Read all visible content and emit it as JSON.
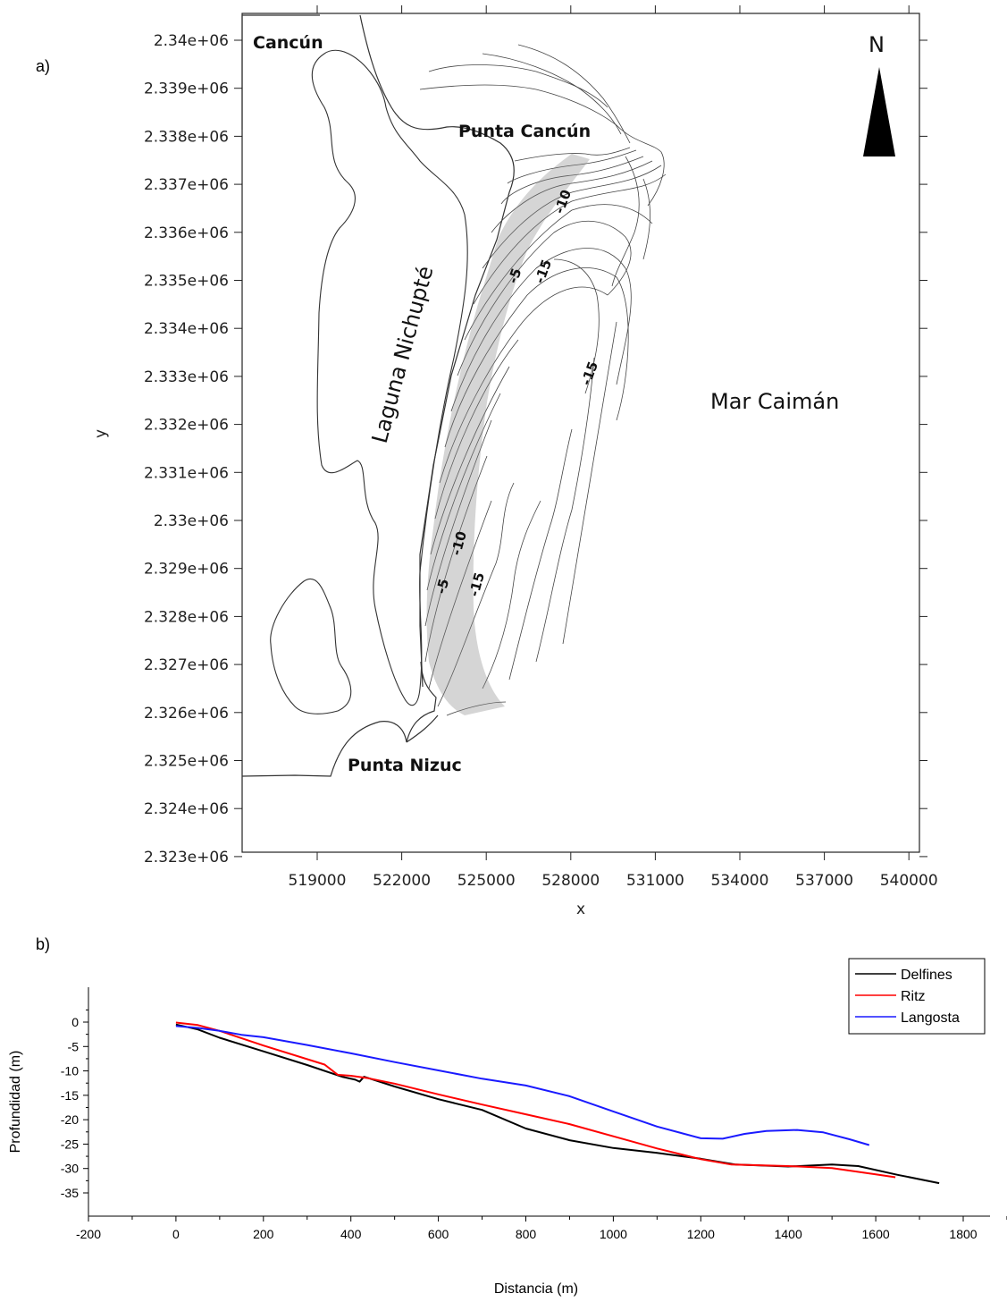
{
  "panels": {
    "a": {
      "label": "a)",
      "xlabel": "x",
      "ylabel": "y",
      "xticks": [
        "519000",
        "522000",
        "525000",
        "528000",
        "531000",
        "534000",
        "537000",
        "540000"
      ],
      "yticks": [
        "2.34e+06",
        "2.339e+06",
        "2.338e+06",
        "2.337e+06",
        "2.336e+06",
        "2.335e+06",
        "2.334e+06",
        "2.333e+06",
        "2.332e+06",
        "2.331e+06",
        "2.33e+06",
        "2.329e+06",
        "2.328e+06",
        "2.327e+06",
        "2.326e+06",
        "2.325e+06",
        "2.324e+06",
        "2.323e+06"
      ],
      "places": {
        "cancun": "Cancún",
        "punta_cancun": "Punta Cancún",
        "laguna": "Laguna Nichupté",
        "mar": "Mar Caimán",
        "punta_nizuc": "Punta Nizuc",
        "north": "N"
      },
      "contour_labels": [
        "-10",
        "-5",
        "-15",
        "-15",
        "-10",
        "-5",
        "-15"
      ]
    },
    "b": {
      "label": "b)"
    }
  },
  "chart_data": [
    {
      "type": "map",
      "title": "",
      "xlabel": "x",
      "ylabel": "y",
      "xlim": [
        516500,
        541000
      ],
      "ylim": [
        2323000,
        2340300
      ],
      "note_values": [
        "-5",
        "-10",
        "-15"
      ]
    },
    {
      "type": "line",
      "title": "",
      "xlabel": "Distancia (m)",
      "ylabel": "Profundidad (m)",
      "xlim": [
        -200,
        1900
      ],
      "ylim": [
        -37,
        3
      ],
      "xticks": [
        "-200",
        "0",
        "200",
        "400",
        "600",
        "800",
        "1000",
        "1200",
        "1400",
        "1600",
        "1800"
      ],
      "yticks": [
        "0",
        "-5",
        "-10",
        "-15",
        "-20",
        "-25",
        "-30",
        "-35"
      ],
      "legend_position": "top-right",
      "series": [
        {
          "name": "Delfines",
          "color": "#000000",
          "x": [
            0,
            50,
            100,
            200,
            300,
            380,
            410,
            420,
            430,
            500,
            600,
            700,
            800,
            900,
            1000,
            1100,
            1200,
            1280,
            1400,
            1500,
            1560,
            1650,
            1745
          ],
          "y": [
            -0.5,
            -1.5,
            -3.2,
            -6.0,
            -8.8,
            -11.2,
            -11.8,
            -12.2,
            -11.2,
            -13.2,
            -15.8,
            -18.0,
            -21.8,
            -24.2,
            -25.8,
            -26.8,
            -28.0,
            -29.2,
            -29.6,
            -29.2,
            -29.5,
            -31.3,
            -33.0
          ]
        },
        {
          "name": "Ritz",
          "color": "#ff0000",
          "x": [
            0,
            50,
            100,
            200,
            340,
            370,
            400,
            440,
            500,
            600,
            700,
            800,
            900,
            1000,
            1100,
            1200,
            1270,
            1400,
            1500,
            1600,
            1645
          ],
          "y": [
            -0.1,
            -0.6,
            -1.8,
            -4.8,
            -8.7,
            -10.8,
            -11.0,
            -11.5,
            -12.6,
            -14.8,
            -16.9,
            -18.9,
            -20.9,
            -23.4,
            -25.9,
            -28.1,
            -29.2,
            -29.5,
            -29.9,
            -31.2,
            -31.8
          ]
        },
        {
          "name": "Langosta",
          "color": "#1a1aff",
          "x": [
            0,
            50,
            100,
            150,
            200,
            220,
            300,
            400,
            500,
            600,
            700,
            800,
            900,
            1000,
            1100,
            1200,
            1250,
            1300,
            1350,
            1420,
            1480,
            1540,
            1585
          ],
          "y": [
            -0.8,
            -1.2,
            -1.8,
            -2.6,
            -3.1,
            -3.4,
            -4.7,
            -6.4,
            -8.2,
            -9.9,
            -11.6,
            -13.0,
            -15.2,
            -18.3,
            -21.4,
            -23.8,
            -23.9,
            -22.9,
            -22.3,
            -22.1,
            -22.6,
            -24.0,
            -25.2
          ]
        }
      ]
    }
  ]
}
